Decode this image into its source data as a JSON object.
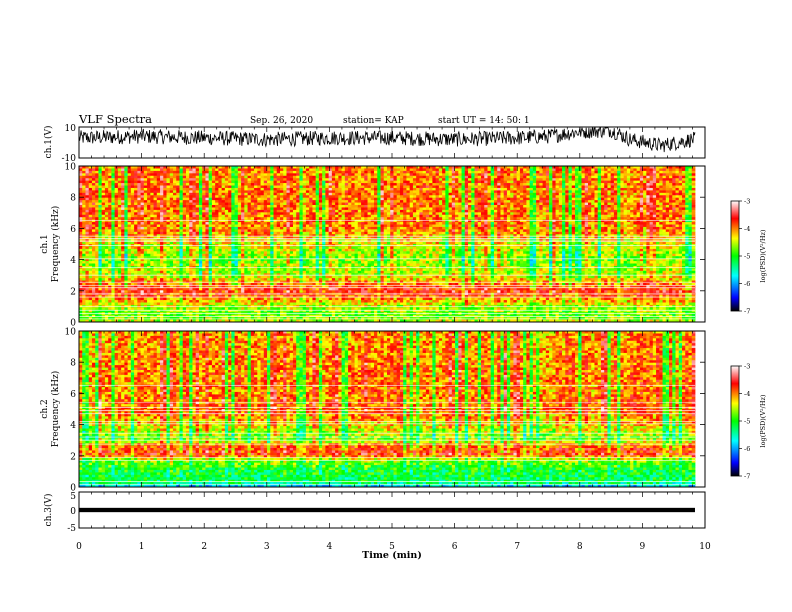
{
  "header": {
    "title": "VLF Spectra",
    "date": "Sep. 26, 2020",
    "station": "station= KAP",
    "start": "start  UT  =    14: 50: 1"
  },
  "chart_data": [
    {
      "type": "line",
      "panel": "ch1-waveform",
      "ylabel": "ch.1(V)",
      "ylim": [
        -10,
        10
      ],
      "yticks": [
        "10",
        "-10"
      ],
      "xlim": [
        0,
        10
      ],
      "x_extent_min": 9.84,
      "baseline": 3,
      "amplitude": 6,
      "line_color": "#000000",
      "sample_levels": [
        {
          "x": 0.0,
          "y": 3
        },
        {
          "x": 1.0,
          "y": 4
        },
        {
          "x": 2.0,
          "y": 3
        },
        {
          "x": 3.0,
          "y": 2
        },
        {
          "x": 4.0,
          "y": 3
        },
        {
          "x": 5.0,
          "y": 3
        },
        {
          "x": 6.0,
          "y": 2
        },
        {
          "x": 7.0,
          "y": 3
        },
        {
          "x": 7.5,
          "y": 4
        },
        {
          "x": 8.0,
          "y": 7
        },
        {
          "x": 8.5,
          "y": 8
        },
        {
          "x": 8.8,
          "y": 2
        },
        {
          "x": 9.3,
          "y": -2
        },
        {
          "x": 9.8,
          "y": 2
        }
      ]
    },
    {
      "type": "heatmap",
      "panel": "ch1-spectrogram",
      "ylabel": "ch.1",
      "ylabel2": "Frequency (kHz)",
      "ylim": [
        0,
        10
      ],
      "yticks": [
        "0",
        "2",
        "4",
        "6",
        "8",
        "10"
      ],
      "xlim": [
        0,
        10
      ],
      "x_extent_min": 9.84,
      "colorbar": {
        "label": "log(PSD)(V²/Hz)",
        "range": [
          -7,
          -3
        ],
        "ticks": [
          "-3",
          "-4",
          "-5",
          "-6",
          "-7"
        ]
      },
      "intensity_profile": [
        {
          "f": 0.0,
          "v": -4.5
        },
        {
          "f": 0.5,
          "v": -4.8
        },
        {
          "f": 1.0,
          "v": -4.5
        },
        {
          "f": 2.0,
          "v": -3.6
        },
        {
          "f": 3.0,
          "v": -4.5
        },
        {
          "f": 4.0,
          "v": -4.7
        },
        {
          "f": 5.0,
          "v": -4.4
        },
        {
          "f": 6.0,
          "v": -4.0
        },
        {
          "f": 8.0,
          "v": -4.0
        },
        {
          "f": 10.0,
          "v": -4.0
        }
      ],
      "bright_band_khz": [
        0.2,
        0.35,
        0.55,
        0.75,
        1.0,
        1.6,
        1.8,
        2.2,
        2.35,
        2.55,
        3.0,
        3.5,
        4.05,
        4.9,
        5.15,
        5.25,
        5.35,
        5.5,
        6.5
      ]
    },
    {
      "type": "heatmap",
      "panel": "ch2-spectrogram",
      "ylabel": "ch.2",
      "ylabel2": "Frequency (kHz)",
      "ylim": [
        0,
        10
      ],
      "yticks": [
        "0",
        "2",
        "4",
        "6",
        "8",
        "10"
      ],
      "xlim": [
        0,
        10
      ],
      "x_extent_min": 9.84,
      "colorbar": {
        "label": "log(PSD)(V²/Hz)",
        "range": [
          -7,
          -3
        ],
        "ticks": [
          "-3",
          "-4",
          "-5",
          "-6",
          "-7"
        ]
      },
      "intensity_profile": [
        {
          "f": 0.0,
          "v": -6.0
        },
        {
          "f": 0.3,
          "v": -5.2
        },
        {
          "f": 1.0,
          "v": -5.1
        },
        {
          "f": 1.7,
          "v": -4.7
        },
        {
          "f": 2.1,
          "v": -3.7
        },
        {
          "f": 2.6,
          "v": -3.9
        },
        {
          "f": 3.1,
          "v": -4.8
        },
        {
          "f": 4.0,
          "v": -4.3
        },
        {
          "f": 5.0,
          "v": -3.9
        },
        {
          "f": 6.0,
          "v": -4.0
        },
        {
          "f": 8.0,
          "v": -4.0
        },
        {
          "f": 10.0,
          "v": -4.1
        }
      ],
      "bright_band_khz": [
        0.15,
        0.35,
        1.7,
        1.9,
        2.75,
        3.0,
        3.2,
        3.45,
        4.05,
        4.2,
        4.7,
        4.9,
        5.1,
        5.4,
        6.5
      ]
    },
    {
      "type": "line",
      "panel": "ch3-level",
      "ylabel": "ch.3(V)",
      "ylim": [
        -5,
        5
      ],
      "yticks": [
        "5",
        "0",
        "-5"
      ],
      "xlim": [
        0,
        10
      ],
      "xlabel": "Time (min)",
      "xticks": [
        "0",
        "1",
        "2",
        "3",
        "4",
        "5",
        "6",
        "7",
        "8",
        "9",
        "10"
      ],
      "x_extent_min": 9.84,
      "level": [
        0.6,
        -0.6
      ],
      "line_color": "#000000"
    }
  ],
  "colors": {
    "axis": "#000000",
    "colormap": [
      "#000000",
      "#0000ff",
      "#00ffff",
      "#00ff00",
      "#ffff00",
      "#ff0000",
      "#ffffff"
    ]
  }
}
